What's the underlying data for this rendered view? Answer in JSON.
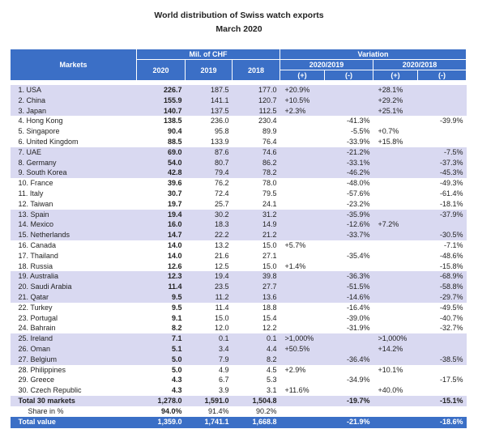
{
  "title": "World distribution of Swiss watch exports",
  "subtitle": "March 2020",
  "header": {
    "markets": "Markets",
    "values_group": "Mil. of CHF",
    "variation_group": "Variation",
    "years": [
      "2020",
      "2019",
      "2018"
    ],
    "periods": [
      "2020/2019",
      "2020/2018"
    ],
    "signs": [
      "(+)",
      "(-)",
      "(+)",
      "(-)"
    ]
  },
  "rows": [
    [
      "1. USA",
      "226.7",
      "187.5",
      "177.0",
      "+20.9%",
      null,
      "+28.1%",
      null
    ],
    [
      "2. China",
      "155.9",
      "141.1",
      "120.7",
      "+10.5%",
      null,
      "+29.2%",
      null
    ],
    [
      "3. Japan",
      "140.7",
      "137.5",
      "112.5",
      "+2.3%",
      null,
      "+25.1%",
      null
    ],
    [
      "4. Hong Kong",
      "138.5",
      "236.0",
      "230.4",
      null,
      "-41.3%",
      null,
      "-39.9%"
    ],
    [
      "5. Singapore",
      "90.4",
      "95.8",
      "89.9",
      null,
      "-5.5%",
      "+0.7%",
      null
    ],
    [
      "6. United Kingdom",
      "88.5",
      "133.9",
      "76.4",
      null,
      "-33.9%",
      "+15.8%",
      null
    ],
    [
      "7. UAE",
      "69.0",
      "87.6",
      "74.6",
      null,
      "-21.2%",
      null,
      "-7.5%"
    ],
    [
      "8. Germany",
      "54.0",
      "80.7",
      "86.2",
      null,
      "-33.1%",
      null,
      "-37.3%"
    ],
    [
      "9. South Korea",
      "42.8",
      "79.4",
      "78.2",
      null,
      "-46.2%",
      null,
      "-45.3%"
    ],
    [
      "10. France",
      "39.6",
      "76.2",
      "78.0",
      null,
      "-48.0%",
      null,
      "-49.3%"
    ],
    [
      "11. Italy",
      "30.7",
      "72.4",
      "79.5",
      null,
      "-57.6%",
      null,
      "-61.4%"
    ],
    [
      "12. Taiwan",
      "19.7",
      "25.7",
      "24.1",
      null,
      "-23.2%",
      null,
      "-18.1%"
    ],
    [
      "13. Spain",
      "19.4",
      "30.2",
      "31.2",
      null,
      "-35.9%",
      null,
      "-37.9%"
    ],
    [
      "14. Mexico",
      "16.0",
      "18.3",
      "14.9",
      null,
      "-12.6%",
      "+7.2%",
      null
    ],
    [
      "15. Netherlands",
      "14.7",
      "22.2",
      "21.2",
      null,
      "-33.7%",
      null,
      "-30.5%"
    ],
    [
      "16. Canada",
      "14.0",
      "13.2",
      "15.0",
      "+5.7%",
      null,
      null,
      "-7.1%"
    ],
    [
      "17. Thailand",
      "14.0",
      "21.6",
      "27.1",
      null,
      "-35.4%",
      null,
      "-48.6%"
    ],
    [
      "18. Russia",
      "12.6",
      "12.5",
      "15.0",
      "+1.4%",
      null,
      null,
      "-15.8%"
    ],
    [
      "19. Australia",
      "12.3",
      "19.4",
      "39.8",
      null,
      "-36.3%",
      null,
      "-68.9%"
    ],
    [
      "20. Saudi Arabia",
      "11.4",
      "23.5",
      "27.7",
      null,
      "-51.5%",
      null,
      "-58.8%"
    ],
    [
      "21. Qatar",
      "9.5",
      "11.2",
      "13.6",
      null,
      "-14.6%",
      null,
      "-29.7%"
    ],
    [
      "22. Turkey",
      "9.5",
      "11.4",
      "18.8",
      null,
      "-16.4%",
      null,
      "-49.5%"
    ],
    [
      "23. Portugal",
      "9.1",
      "15.0",
      "15.4",
      null,
      "-39.0%",
      null,
      "-40.7%"
    ],
    [
      "24. Bahrain",
      "8.2",
      "12.0",
      "12.2",
      null,
      "-31.9%",
      null,
      "-32.7%"
    ],
    [
      "25. Ireland",
      "7.1",
      "0.1",
      "0.1",
      ">1,000%",
      null,
      ">1,000%",
      null
    ],
    [
      "26. Oman",
      "5.1",
      "3.4",
      "4.4",
      "+50.5%",
      null,
      "+14.2%",
      null
    ],
    [
      "27. Belgium",
      "5.0",
      "7.9",
      "8.2",
      null,
      "-36.4%",
      null,
      "-38.5%"
    ],
    [
      "28. Philippines",
      "5.0",
      "4.9",
      "4.5",
      "+2.9%",
      null,
      "+10.1%",
      null
    ],
    [
      "29. Greece",
      "4.3",
      "6.7",
      "5.3",
      null,
      "-34.9%",
      null,
      "-17.5%"
    ],
    [
      "30. Czech Republic",
      "4.3",
      "3.9",
      "3.1",
      "+11.6%",
      null,
      "+40.0%",
      null
    ]
  ],
  "totals": [
    [
      "Total 30 markets",
      "1,278.0",
      "1,591.0",
      "1,504.8",
      null,
      "-19.7%",
      null,
      "-15.1%"
    ],
    [
      "Share in %",
      "94.0%",
      "91.4%",
      "90.2%",
      null,
      null,
      null,
      null
    ],
    [
      "Total value",
      "1,359.0",
      "1,741.1",
      "1,668.8",
      null,
      "-21.9%",
      null,
      "-18.6%"
    ]
  ]
}
